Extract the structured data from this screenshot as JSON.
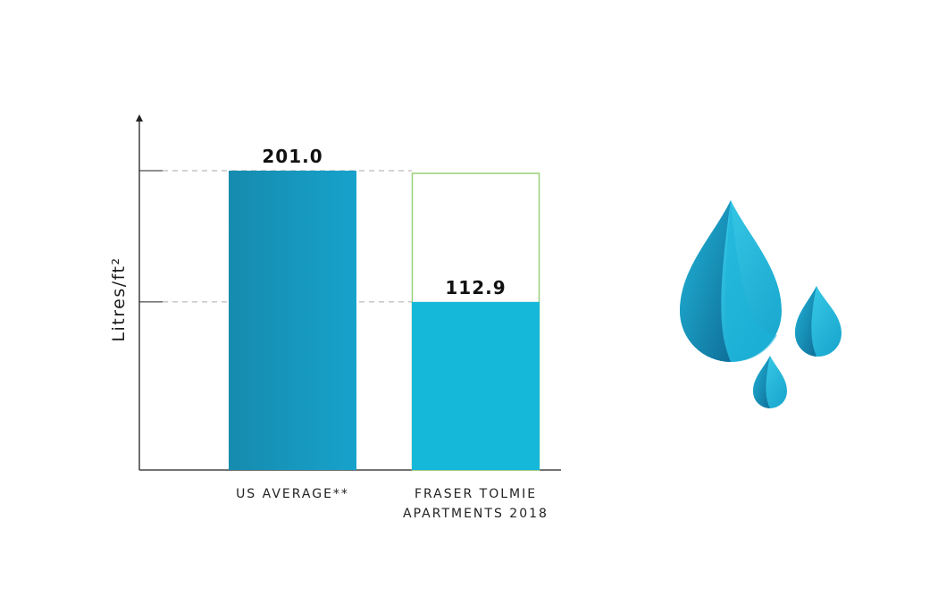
{
  "chart_data": {
    "type": "bar",
    "ylabel": "Litres/ft²",
    "categories": [
      [
        "US AVERAGE**"
      ],
      [
        "FRASER TOLMIE",
        "APARTMENTS 2018"
      ]
    ],
    "values": [
      201.0,
      112.9
    ],
    "value_labels": [
      "201.0",
      "112.9"
    ],
    "ylim": [
      0,
      201.0
    ],
    "reference_lines": [
      201.0,
      112.9
    ],
    "comparison_outline": {
      "bar_index": 1,
      "value": 201.0
    },
    "grid": false,
    "legend": "none"
  },
  "colors": {
    "bar_us_start": "#168bae",
    "bar_us_end": "#17a2cb",
    "bar_fraser": "#16b8d9",
    "outline": "#98cf7a",
    "axis": "#222222",
    "dash": "#aaaaaa",
    "drop_light": "#2fc4e3",
    "drop_dark": "#137fa6"
  },
  "decoration": {
    "icon": "water-drops-icon"
  }
}
